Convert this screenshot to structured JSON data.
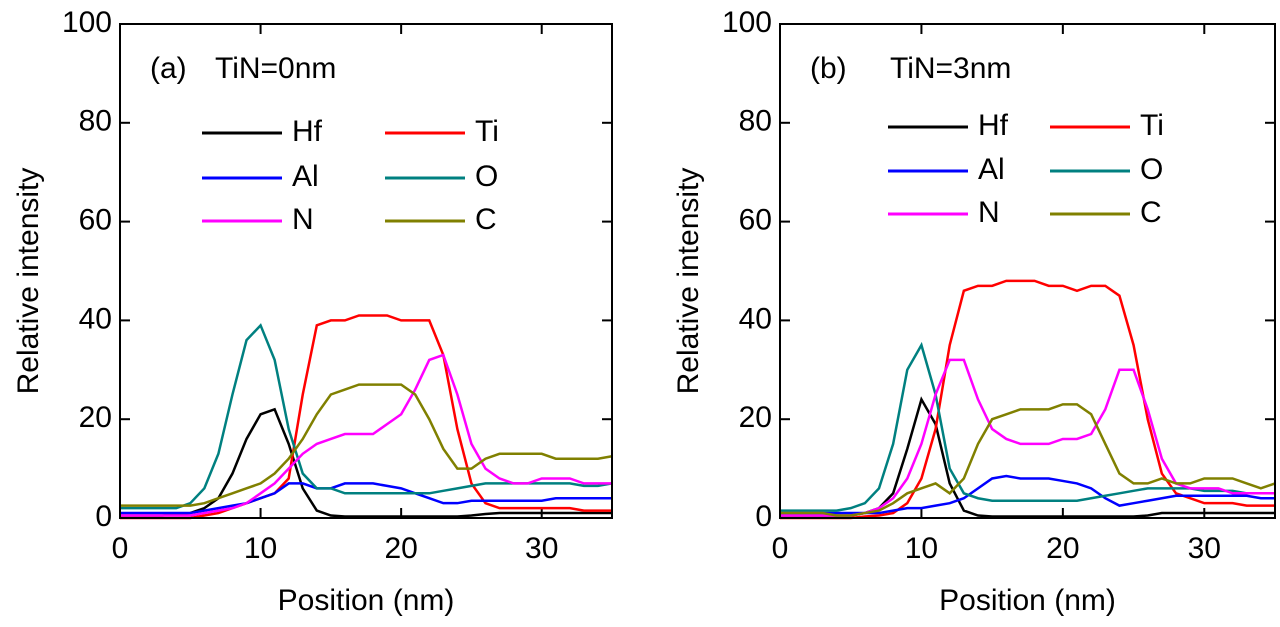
{
  "chart_data": [
    {
      "type": "line",
      "panel_label": "(a)",
      "annotation": "TiN=0nm",
      "x_label": "Position (nm)",
      "y_label": "Relative intensity",
      "xlim": [
        0,
        35
      ],
      "ylim": [
        0,
        100
      ],
      "xticks": [
        0,
        10,
        20,
        30
      ],
      "yticks": [
        0,
        20,
        40,
        60,
        80,
        100
      ],
      "x": [
        0,
        1,
        2,
        3,
        4,
        5,
        6,
        7,
        8,
        9,
        10,
        11,
        12,
        13,
        14,
        15,
        16,
        17,
        18,
        19,
        20,
        21,
        22,
        23,
        24,
        25,
        26,
        27,
        28,
        29,
        30,
        31,
        32,
        33,
        34,
        35
      ],
      "series": [
        {
          "name": "Hf",
          "color": "#000000",
          "values": [
            0.5,
            0.5,
            0.5,
            0.5,
            0.8,
            1,
            2,
            4,
            9,
            16,
            21,
            22,
            15,
            6,
            1.5,
            0.5,
            0.3,
            0.3,
            0.3,
            0.3,
            0.3,
            0.3,
            0.3,
            0.3,
            0.3,
            0.5,
            0.8,
            1,
            1,
            1,
            1,
            1,
            1,
            1,
            1,
            1
          ]
        },
        {
          "name": "Ti",
          "color": "#ff0000",
          "values": [
            0,
            0,
            0,
            0,
            0,
            0,
            0.5,
            1,
            2,
            3,
            4,
            5,
            8,
            25,
            39,
            40,
            40,
            41,
            41,
            41,
            40,
            40,
            40,
            33,
            18,
            7,
            3,
            2,
            2,
            2,
            2,
            2,
            2,
            1.5,
            1.5,
            1.5
          ]
        },
        {
          "name": "Al",
          "color": "#0000ff",
          "values": [
            1,
            1,
            1,
            1,
            1,
            1,
            1.5,
            2,
            2.5,
            3,
            4,
            5,
            7,
            7,
            6,
            6,
            7,
            7,
            7,
            6.5,
            6,
            5,
            4,
            3,
            3,
            3.5,
            3.5,
            3.5,
            3.5,
            3.5,
            3.5,
            4,
            4,
            4,
            4,
            4
          ]
        },
        {
          "name": "O",
          "color": "#008080",
          "values": [
            2,
            2,
            2,
            2,
            2,
            3,
            6,
            13,
            25,
            36,
            39,
            32,
            18,
            9,
            6,
            6,
            5,
            5,
            5,
            5,
            5,
            5,
            5,
            5.5,
            6,
            6.5,
            7,
            7,
            7,
            7,
            7,
            7,
            7,
            6.5,
            6.5,
            7
          ]
        },
        {
          "name": "N",
          "color": "#ff00ff",
          "values": [
            0.5,
            0.5,
            0.5,
            0.5,
            0.5,
            0.5,
            1,
            1.5,
            2,
            3,
            5,
            7,
            10,
            13,
            15,
            16,
            17,
            17,
            17,
            19,
            21,
            26,
            32,
            33,
            25,
            15,
            10,
            8,
            7,
            7,
            8,
            8,
            8,
            7,
            7,
            7
          ]
        },
        {
          "name": "C",
          "color": "#808000",
          "values": [
            2.5,
            2.5,
            2.5,
            2.5,
            2.5,
            2.5,
            3,
            4,
            5,
            6,
            7,
            9,
            12,
            16,
            21,
            25,
            26,
            27,
            27,
            27,
            27,
            25,
            20,
            14,
            10,
            10,
            12,
            13,
            13,
            13,
            13,
            12,
            12,
            12,
            12,
            12.5
          ]
        }
      ]
    },
    {
      "type": "line",
      "panel_label": "(b)",
      "annotation": "TiN=3nm",
      "x_label": "Position (nm)",
      "y_label": "Relative intensity",
      "xlim": [
        0,
        35
      ],
      "ylim": [
        0,
        100
      ],
      "xticks": [
        0,
        10,
        20,
        30
      ],
      "yticks": [
        0,
        20,
        40,
        60,
        80,
        100
      ],
      "x": [
        0,
        1,
        2,
        3,
        4,
        5,
        6,
        7,
        8,
        9,
        10,
        11,
        12,
        13,
        14,
        15,
        16,
        17,
        18,
        19,
        20,
        21,
        22,
        23,
        24,
        25,
        26,
        27,
        28,
        29,
        30,
        31,
        32,
        33,
        34,
        35
      ],
      "series": [
        {
          "name": "Hf",
          "color": "#000000",
          "values": [
            0.5,
            0.5,
            0.5,
            0.5,
            0.5,
            0.5,
            1,
            2,
            5,
            14,
            24,
            19,
            7,
            1.5,
            0.5,
            0.3,
            0.3,
            0.3,
            0.3,
            0.3,
            0.3,
            0.3,
            0.3,
            0.3,
            0.3,
            0.3,
            0.5,
            1,
            1,
            1,
            1,
            1,
            1,
            1,
            1,
            1
          ]
        },
        {
          "name": "Ti",
          "color": "#ff0000",
          "values": [
            0,
            0,
            0,
            0,
            0,
            0,
            0.3,
            0.5,
            1,
            3,
            8,
            18,
            35,
            46,
            47,
            47,
            48,
            48,
            48,
            47,
            47,
            46,
            47,
            47,
            45,
            35,
            20,
            9,
            5,
            4,
            3,
            3,
            3,
            2.5,
            2.5,
            2.5
          ]
        },
        {
          "name": "Al",
          "color": "#0000ff",
          "values": [
            1,
            1,
            1,
            1,
            1,
            1,
            1,
            1,
            1.5,
            2,
            2,
            2.5,
            3,
            4,
            6,
            8,
            8.5,
            8,
            8,
            8,
            7.5,
            7,
            6,
            4,
            2.5,
            3,
            3.5,
            4,
            4.5,
            4.5,
            4.5,
            4.5,
            4.5,
            4.5,
            4,
            4
          ]
        },
        {
          "name": "O",
          "color": "#008080",
          "values": [
            1.5,
            1.5,
            1.5,
            1.5,
            1.5,
            2,
            3,
            6,
            15,
            30,
            35,
            25,
            10,
            5,
            4,
            3.5,
            3.5,
            3.5,
            3.5,
            3.5,
            3.5,
            3.5,
            4,
            4.5,
            5,
            5.5,
            6,
            6,
            6,
            6,
            5.5,
            5.5,
            5.5,
            5,
            5,
            5
          ]
        },
        {
          "name": "N",
          "color": "#ff00ff",
          "values": [
            0.5,
            0.5,
            0.5,
            0.5,
            0.5,
            0.5,
            1,
            2,
            4,
            8,
            15,
            25,
            32,
            32,
            24,
            18,
            16,
            15,
            15,
            15,
            16,
            16,
            17,
            22,
            30,
            30,
            22,
            12,
            7,
            6,
            6,
            6,
            5,
            5,
            5,
            5
          ]
        },
        {
          "name": "C",
          "color": "#808000",
          "values": [
            1,
            1,
            1,
            1,
            0.5,
            0.5,
            1,
            1.5,
            3,
            5,
            6,
            7,
            5,
            8,
            15,
            20,
            21,
            22,
            22,
            22,
            23,
            23,
            21,
            15,
            9,
            7,
            7,
            8,
            7,
            7,
            8,
            8,
            8,
            7,
            6,
            7
          ]
        }
      ]
    }
  ]
}
